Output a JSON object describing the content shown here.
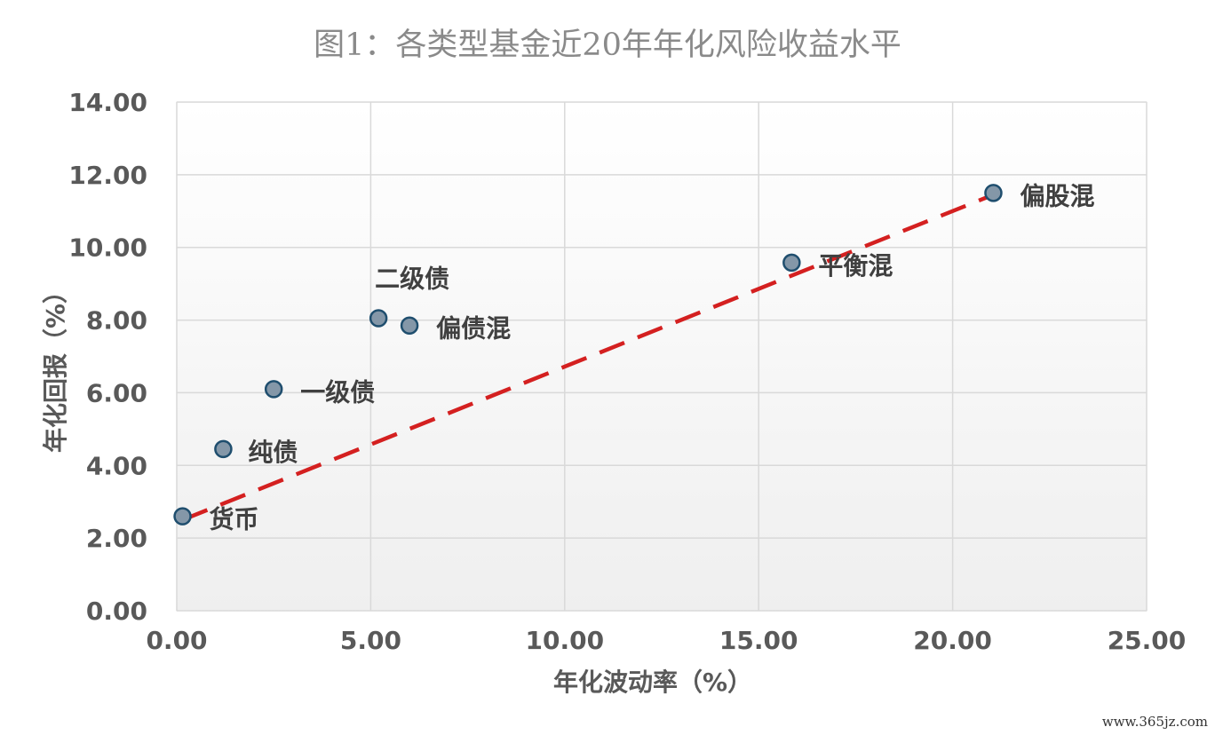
{
  "chart_data": {
    "type": "scatter",
    "title": "图1：各类型基金近20年年化风险收益水平",
    "xlabel": "年化波动率（%）",
    "ylabel": "年化回报（%）",
    "xlim": [
      0,
      25
    ],
    "ylim": [
      0,
      14
    ],
    "x_ticks": [
      "0.00",
      "5.00",
      "10.00",
      "15.00",
      "20.00",
      "25.00"
    ],
    "y_ticks": [
      "0.00",
      "2.00",
      "4.00",
      "6.00",
      "8.00",
      "10.00",
      "12.00",
      "14.00"
    ],
    "grid": true,
    "points": [
      {
        "label": "货币",
        "x": 0.15,
        "y": 2.6
      },
      {
        "label": "纯债",
        "x": 1.2,
        "y": 4.45
      },
      {
        "label": "一级债",
        "x": 2.5,
        "y": 6.1
      },
      {
        "label": "二级债",
        "x": 5.2,
        "y": 8.05
      },
      {
        "label": "偏债混",
        "x": 6.0,
        "y": 7.85
      },
      {
        "label": "平衡混",
        "x": 15.85,
        "y": 9.58
      },
      {
        "label": "偏股混",
        "x": 21.05,
        "y": 11.5
      }
    ],
    "trendline": {
      "style": "dashed",
      "from": [
        0.15,
        2.5
      ],
      "to": [
        21.05,
        11.45
      ]
    },
    "colors": {
      "marker_fill": "#8497a8",
      "marker_stroke": "#1f4e6e",
      "trendline": "#d42020",
      "grid": "#d9d9d9"
    }
  },
  "watermark": "www.365jz.com"
}
